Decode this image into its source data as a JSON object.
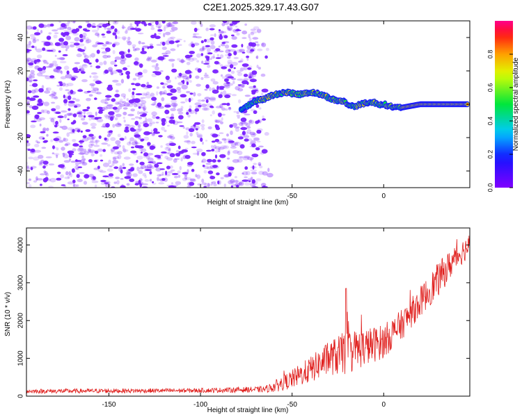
{
  "title": "C2E1.2025.329.17.43.G07",
  "colors": {
    "noise": "#7a22ff",
    "snr_line": "#e0201e",
    "axis": "#000000"
  },
  "chart_data": [
    {
      "type": "heatmap",
      "xlabel": "Height of straight line (km)",
      "ylabel": "Frequency (Hz)",
      "xlim": [
        -195,
        47
      ],
      "ylim": [
        -50,
        50
      ],
      "xticks": [
        -150,
        -100,
        -50,
        0
      ],
      "yticks": [
        -40,
        -20,
        0,
        20,
        40
      ],
      "colorbar": {
        "label": "Normalized spectral amplitude",
        "range": [
          0,
          1
        ],
        "ticks": [
          0.0,
          0.2,
          0.4,
          0.6,
          0.8
        ]
      },
      "noise_region_x": [
        -195,
        -62
      ],
      "ridge": {
        "x": [
          -78,
          -75,
          -72,
          -70,
          -68,
          -65,
          -62,
          -58,
          -55,
          -52,
          -48,
          -45,
          -42,
          -38,
          -35,
          -32,
          -30,
          -28,
          -25,
          -22,
          -20,
          -18,
          -15,
          -12,
          -10,
          -8,
          -5,
          -3,
          0,
          3,
          6,
          10,
          15,
          20,
          25,
          30,
          35,
          40,
          46
        ],
        "frequency_hz": [
          -3,
          -1,
          0,
          2,
          3,
          3,
          5,
          6,
          7,
          7,
          6,
          6,
          7,
          7,
          6,
          5,
          4,
          3,
          2,
          2,
          0,
          -1,
          -1,
          0,
          1,
          1,
          1,
          0,
          0,
          -1,
          -2,
          -2,
          -1,
          0,
          0,
          0,
          0,
          0,
          0
        ]
      }
    },
    {
      "type": "line",
      "xlabel": "Height of straight line (km)",
      "ylabel": "SNR (10 * v/v)",
      "xlim": [
        -195,
        47
      ],
      "ylim": [
        0,
        4450
      ],
      "xticks": [
        -150,
        -100,
        -50,
        0
      ],
      "yticks": [
        0,
        1000,
        2000,
        3000,
        4000
      ],
      "envelope": {
        "x": [
          -195,
          -150,
          -100,
          -65,
          -60,
          -50,
          -40,
          -30,
          -20,
          -10,
          0,
          10,
          20,
          30,
          40,
          47
        ],
        "mean": [
          130,
          140,
          150,
          180,
          250,
          450,
          700,
          1000,
          1150,
          1300,
          1450,
          1900,
          2500,
          3100,
          3700,
          4000
        ],
        "spread": [
          60,
          60,
          60,
          80,
          150,
          250,
          350,
          450,
          600,
          500,
          450,
          400,
          400,
          450,
          350,
          300
        ]
      }
    }
  ]
}
